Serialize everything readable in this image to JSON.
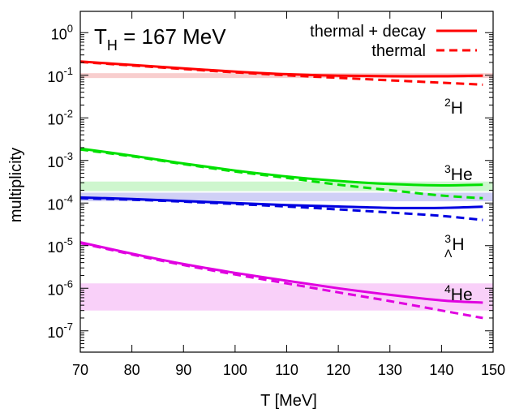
{
  "chart_data": {
    "type": "line",
    "title": "",
    "annotation": {
      "main": "T",
      "sub": "H",
      "rest": " = 167 MeV"
    },
    "xlabel": "T [MeV]",
    "ylabel": "multiplicity",
    "xlim": [
      70,
      150
    ],
    "ylim_log10": [
      -7.5,
      0.5
    ],
    "y_scale": "log",
    "grid": false,
    "legend_position": "top-right",
    "x_ticks": [
      70,
      80,
      90,
      100,
      110,
      120,
      130,
      140,
      150
    ],
    "y_ticks": [
      {
        "exp": 0,
        "base": "10",
        "sup": "0"
      },
      {
        "exp": -1,
        "base": "10",
        "sup": "-1"
      },
      {
        "exp": -2,
        "base": "10",
        "sup": "-2"
      },
      {
        "exp": -3,
        "base": "10",
        "sup": "-3"
      },
      {
        "exp": -4,
        "base": "10",
        "sup": "-4"
      },
      {
        "exp": -5,
        "base": "10",
        "sup": "-5"
      },
      {
        "exp": -6,
        "base": "10",
        "sup": "-6"
      },
      {
        "exp": -7,
        "base": "10",
        "sup": "-7"
      }
    ],
    "legend": [
      {
        "label": "thermal + decay",
        "style": "solid"
      },
      {
        "label": "thermal",
        "style": "dashed"
      }
    ],
    "x": [
      70,
      80,
      90,
      100,
      110,
      120,
      130,
      140,
      148
    ],
    "series": [
      {
        "id": "deuteron",
        "color": "#ff0000",
        "band_color": "#f7c6c6",
        "label": {
          "sup": "2",
          "pre": "",
          "text": "H"
        },
        "thermal_decay": [
          0.21,
          0.175,
          0.145,
          0.122,
          0.106,
          0.098,
          0.095,
          0.095,
          0.098
        ],
        "thermal": [
          0.205,
          0.17,
          0.14,
          0.117,
          0.1,
          0.087,
          0.076,
          0.067,
          0.06
        ],
        "band": [
          0.086,
          0.112
        ]
      },
      {
        "id": "helium3",
        "color": "#00e000",
        "band_color": "#c6f5c6",
        "label": {
          "sup": "3",
          "pre": "",
          "text": "He"
        },
        "thermal_decay": [
          0.0019,
          0.0013,
          0.00085,
          0.00058,
          0.00042,
          0.00033,
          0.00028,
          0.00026,
          0.00027
        ],
        "thermal": [
          0.0018,
          0.00125,
          0.00082,
          0.00055,
          0.00039,
          0.00027,
          0.0002,
          0.00015,
          0.00013
        ],
        "band": [
          0.00019,
          0.00032
        ]
      },
      {
        "id": "hypertriton",
        "color": "#0000e0",
        "band_color": "#c8c8f5",
        "label": {
          "sup": "3",
          "pre": "Λ",
          "text": "H"
        },
        "thermal_decay": [
          0.000135,
          0.000125,
          0.000112,
          0.0001,
          9e-05,
          8.3e-05,
          7.7e-05,
          7.7e-05,
          8.2e-05
        ],
        "thermal": [
          0.00013,
          0.00012,
          0.000108,
          9.5e-05,
          8.3e-05,
          7.1e-05,
          6e-05,
          5e-05,
          4e-05
        ],
        "band": [
          0.00011,
          0.000175
        ]
      },
      {
        "id": "helium4",
        "color": "#e000e0",
        "band_color": "#f8c8f8",
        "label": {
          "sup": "4",
          "pre": "",
          "text": "He"
        },
        "thermal_decay": [
          1.2e-05,
          6.5e-06,
          3.7e-06,
          2.3e-06,
          1.5e-06,
          1e-06,
          7e-07,
          5.2e-07,
          4.6e-07
        ],
        "thermal": [
          1.15e-05,
          6.2e-06,
          3.5e-06,
          2.1e-06,
          1.3e-06,
          8e-07,
          5e-07,
          3e-07,
          2e-07
        ],
        "band": [
          3e-07,
          1.3e-06
        ]
      }
    ]
  }
}
